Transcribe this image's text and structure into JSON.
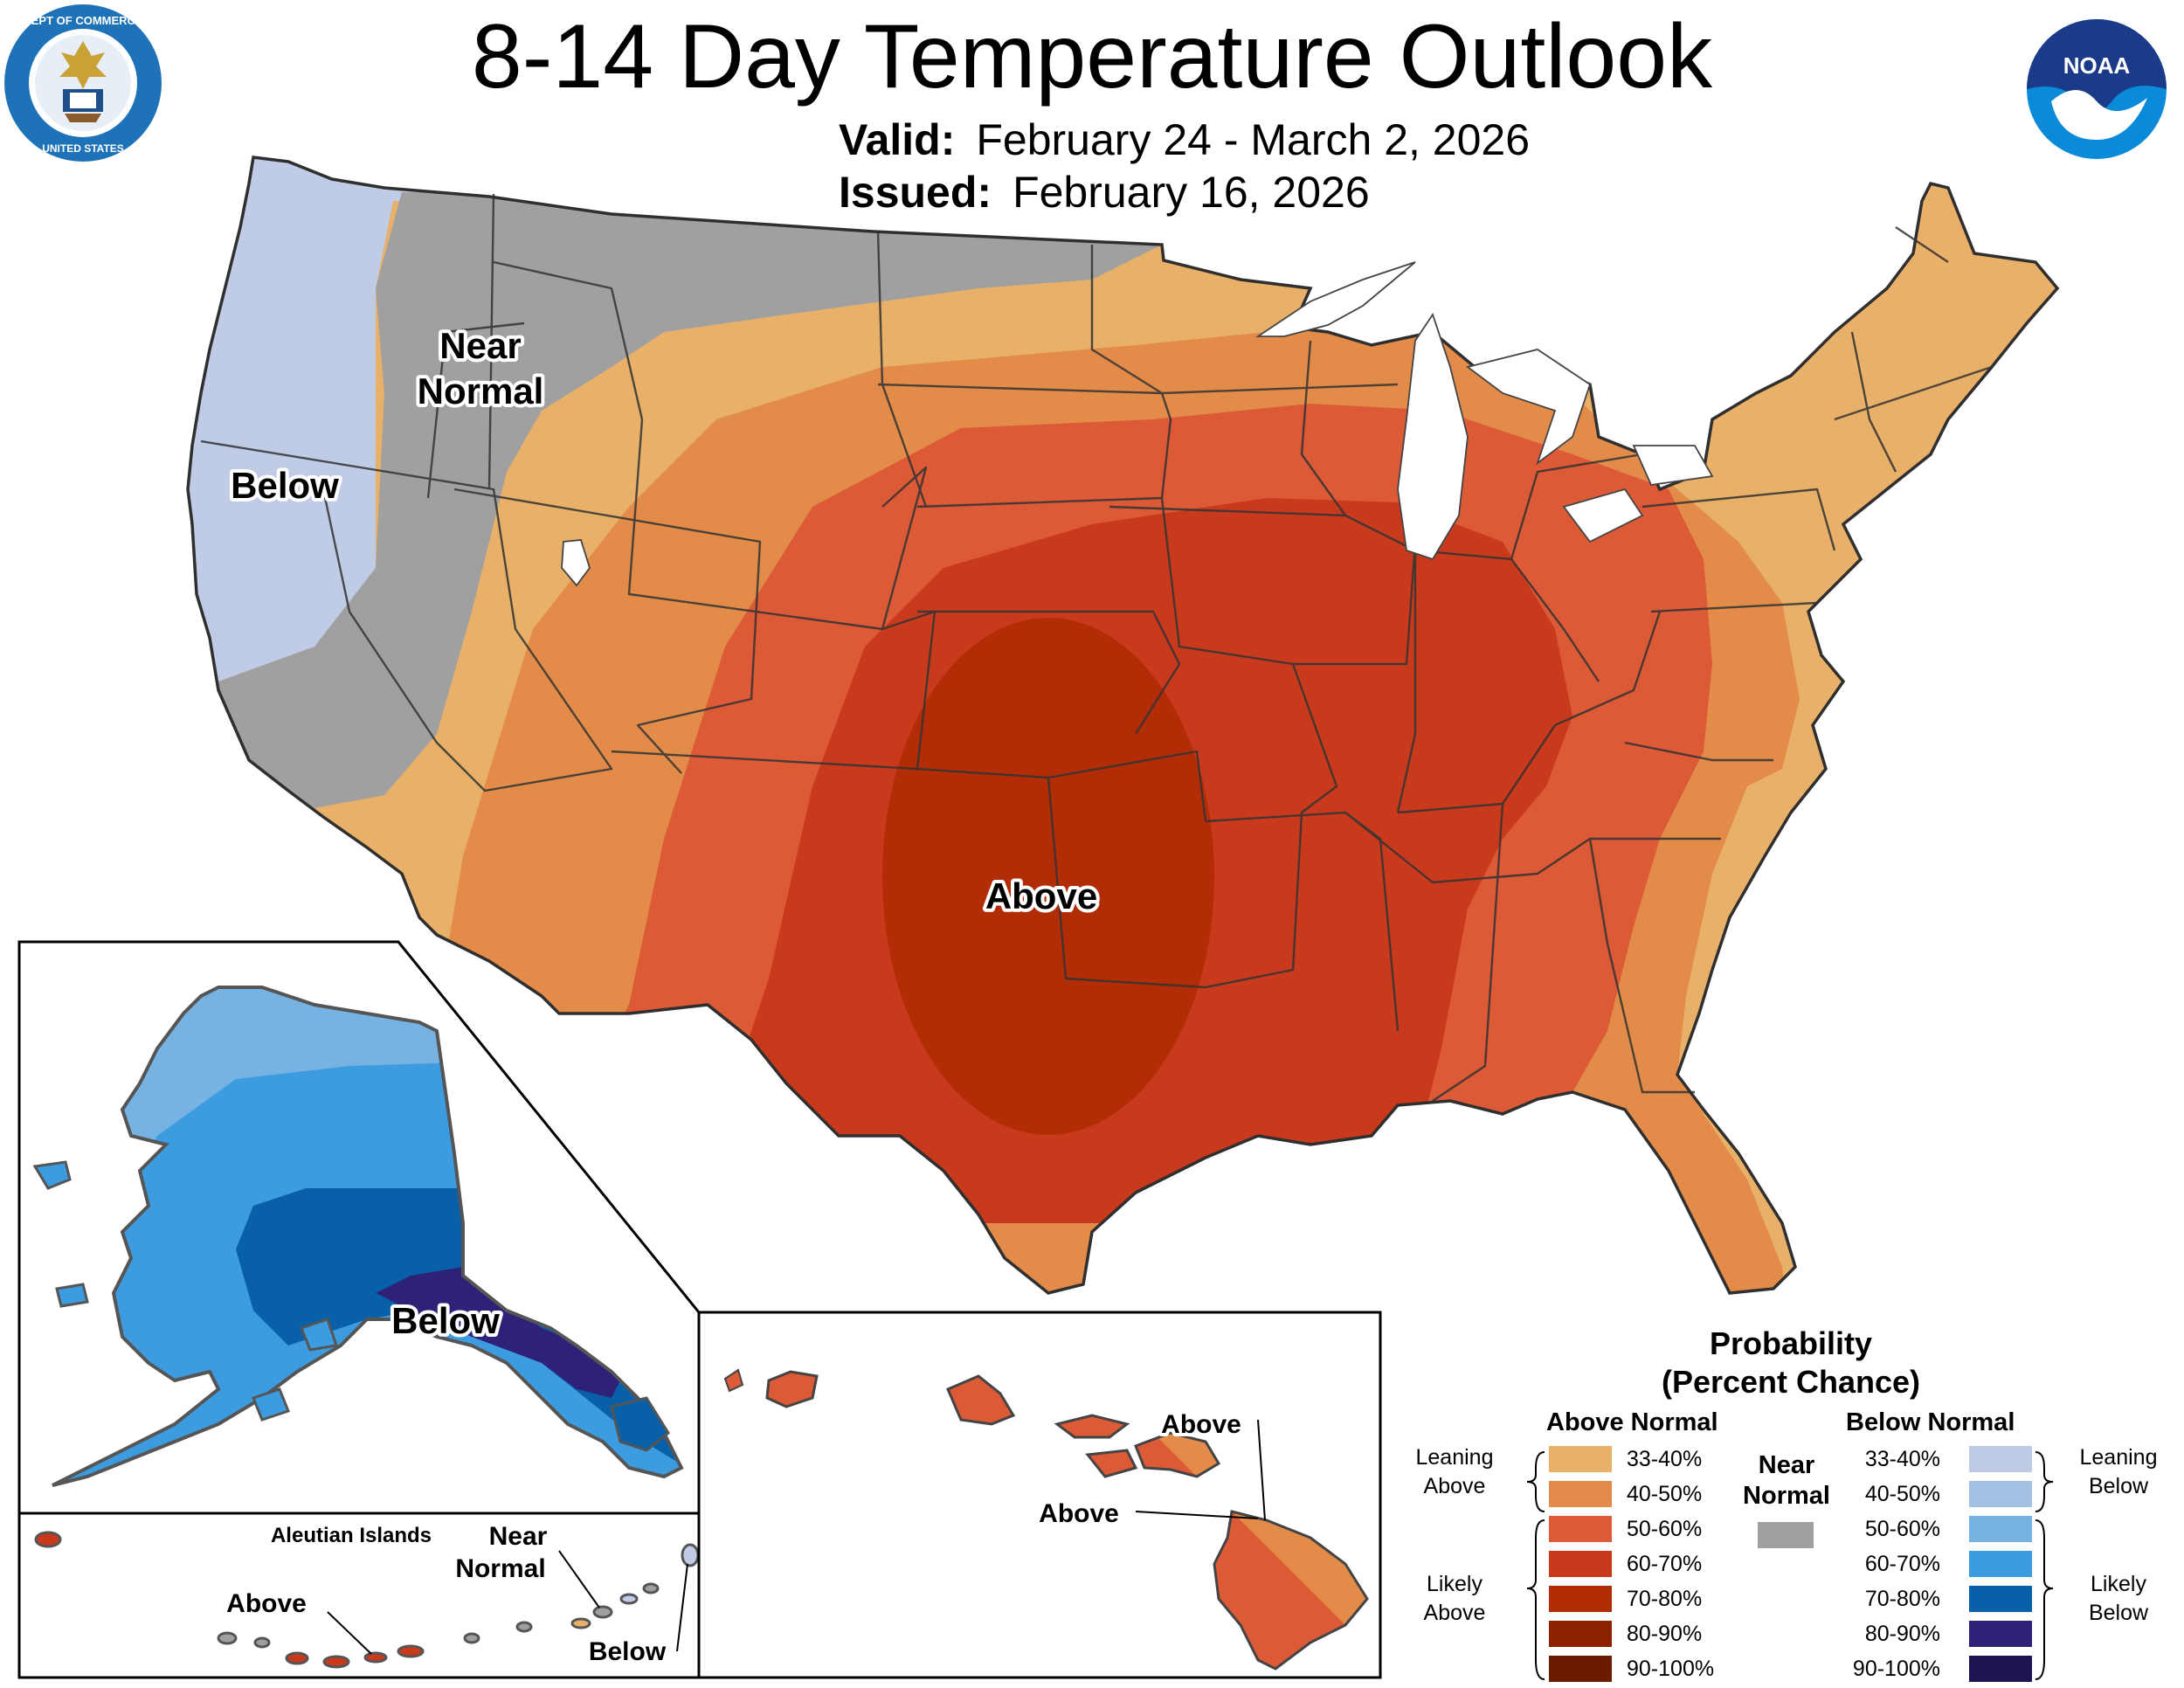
{
  "header": {
    "title": "8-14 Day Temperature Outlook",
    "valid_label": "Valid:",
    "valid_value": "February 24 - March 2, 2026",
    "issued_label": "Issued:",
    "issued_value": "February 16, 2026",
    "left_logo_text": "DEPARTMENT OF COMMERCE · UNITED STATES OF AMERICA",
    "right_logo_text": "NOAA"
  },
  "map_labels": {
    "conus_near_normal_1": "Near",
    "conus_near_normal_2": "Normal",
    "conus_below": "Below",
    "conus_above": "Above",
    "alaska_below": "Below",
    "aleutian_title": "Aleutian Islands",
    "aleutian_near_1": "Near",
    "aleutian_near_2": "Normal",
    "aleutian_above": "Above",
    "aleutian_below": "Below",
    "hawaii_above_1": "Above",
    "hawaii_above_2": "Above"
  },
  "legend": {
    "title_line1": "Probability",
    "title_line2": "(Percent Chance)",
    "above_header": "Above Normal",
    "below_header": "Below Normal",
    "near_1": "Near",
    "near_2": "Normal",
    "near_color": "#a0a0a0",
    "leaning_above_1": "Leaning",
    "leaning_above_2": "Above",
    "likely_above_1": "Likely",
    "likely_above_2": "Above",
    "leaning_below_1": "Leaning",
    "leaning_below_2": "Below",
    "likely_below_1": "Likely",
    "likely_below_2": "Below",
    "above": [
      {
        "label": "33-40%",
        "color": "#e8b068"
      },
      {
        "label": "40-50%",
        "color": "#e38b48"
      },
      {
        "label": "50-60%",
        "color": "#dc5a35"
      },
      {
        "label": "60-70%",
        "color": "#c93a1d"
      },
      {
        "label": "70-80%",
        "color": "#b22d05"
      },
      {
        "label": "80-90%",
        "color": "#8c2200"
      },
      {
        "label": "90-100%",
        "color": "#6b1c00"
      }
    ],
    "below": [
      {
        "label": "33-40%",
        "color": "#c0cbe6"
      },
      {
        "label": "40-50%",
        "color": "#a3c2e3"
      },
      {
        "label": "50-60%",
        "color": "#76b3e3"
      },
      {
        "label": "60-70%",
        "color": "#3d9ce0"
      },
      {
        "label": "70-80%",
        "color": "#0861a8"
      },
      {
        "label": "80-90%",
        "color": "#2d2277"
      },
      {
        "label": "90-100%",
        "color": "#1d1452"
      }
    ]
  }
}
